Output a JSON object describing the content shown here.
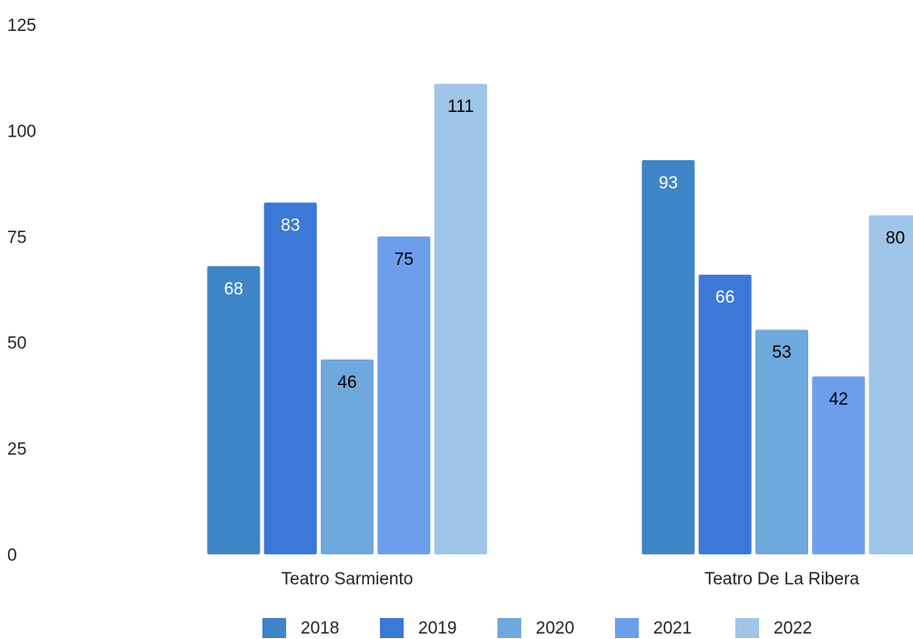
{
  "chart_data": {
    "type": "bar",
    "categories": [
      "Teatro Sarmiento",
      "Teatro De La Ribera"
    ],
    "series": [
      {
        "name": "2018",
        "color": "#3d85c6",
        "label_color": "#ffffff",
        "values": [
          68,
          93
        ]
      },
      {
        "name": "2019",
        "color": "#3c78d8",
        "label_color": "#ffffff",
        "values": [
          83,
          66
        ]
      },
      {
        "name": "2020",
        "color": "#6fa8dc",
        "label_color": "#000000",
        "values": [
          46,
          53
        ]
      },
      {
        "name": "2021",
        "color": "#6d9eeb",
        "label_color": "#000000",
        "values": [
          75,
          42
        ]
      },
      {
        "name": "2022",
        "color": "#9fc5e8",
        "label_color": "#000000",
        "values": [
          111,
          80
        ]
      }
    ],
    "ylim": [
      0,
      125
    ],
    "yticks": [
      0,
      25,
      50,
      75,
      100,
      125
    ],
    "grid": false,
    "legend": "bottom"
  }
}
